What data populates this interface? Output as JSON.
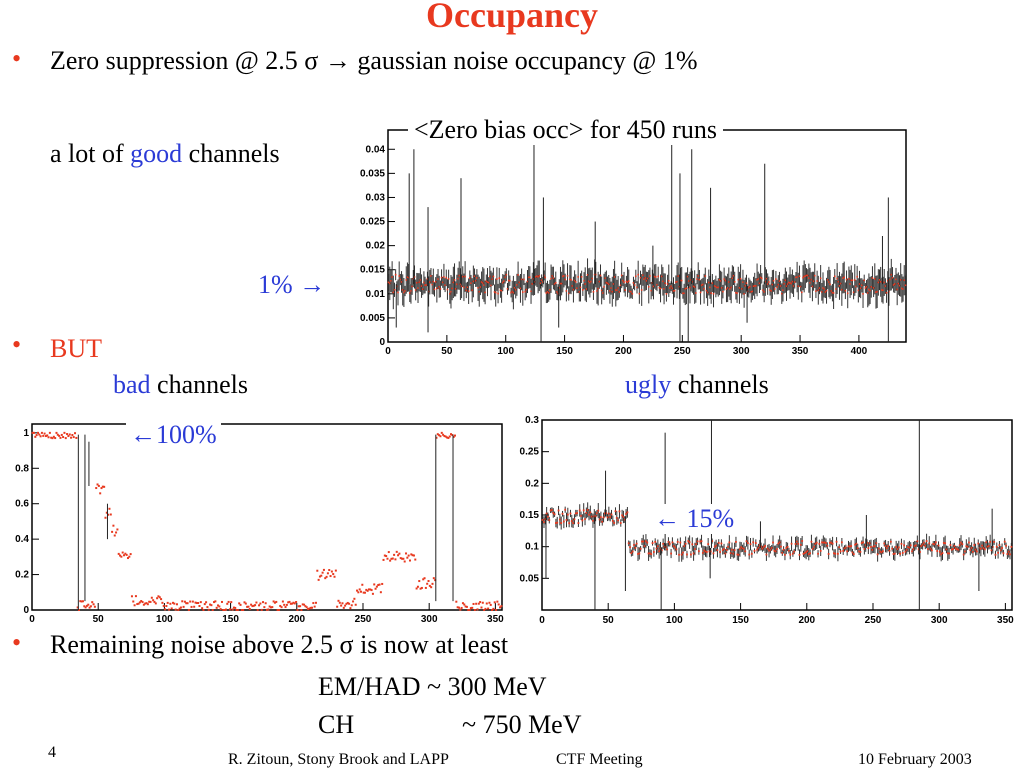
{
  "title": "Occupancy",
  "bullets": {
    "zero_suppression": "Zero suppression @ 2.5 σ → gaussian noise occupancy @ 1%",
    "good_prefix": "a lot of ",
    "good_word": "good",
    "good_suffix": " channels",
    "one_percent": "1% →",
    "but": "BUT",
    "bad_word": "bad",
    "bad_suffix": " channels",
    "ugly_word": "ugly",
    "ugly_suffix": " channels",
    "hundred": "←100%",
    "fifteen": "← 15%",
    "remaining": "Remaining noise above 2.5 σ is now at least",
    "emhad": "EM/HAD ~ 300 MeV",
    "ch_label": "CH",
    "ch_value": "~ 750 MeV"
  },
  "footer": {
    "page": "4",
    "author": "R. Zitoun, Stony Brook and LAPP",
    "meeting": "CTF  Meeting",
    "date": "10 February 2003"
  },
  "chart_data": [
    {
      "type": "line",
      "title": "<Zero bias occ> for 450 runs",
      "xlim": [
        0,
        440
      ],
      "ylim": [
        0,
        0.044
      ],
      "xticks": [
        "0",
        "50",
        "100",
        "150",
        "200",
        "250",
        "300",
        "350",
        "400"
      ],
      "yticks": [
        "0",
        "0.005",
        "0.01",
        "0.015",
        "0.02",
        "0.025",
        "0.03",
        "0.035",
        "0.04"
      ],
      "baseline": 0.012,
      "noise": 0.002,
      "spikes": [
        [
          18,
          0.035
        ],
        [
          22,
          0.04
        ],
        [
          34,
          0.028
        ],
        [
          62,
          0.034
        ],
        [
          124,
          0.043
        ],
        [
          132,
          0.03
        ],
        [
          176,
          0.025
        ],
        [
          225,
          0.02
        ],
        [
          241,
          0.043
        ],
        [
          248,
          0.035
        ],
        [
          258,
          0.04
        ],
        [
          274,
          0.032
        ],
        [
          320,
          0.037
        ],
        [
          420,
          0.022
        ],
        [
          425,
          0.03
        ]
      ],
      "dips": [
        [
          7,
          0.003
        ],
        [
          34,
          0.002
        ],
        [
          130,
          0.0
        ],
        [
          145,
          0.003
        ],
        [
          248,
          0.0
        ],
        [
          255,
          0.0
        ],
        [
          305,
          0.004
        ],
        [
          425,
          0.0
        ]
      ],
      "grid": false
    },
    {
      "type": "line",
      "title": "",
      "xlim": [
        0,
        355
      ],
      "ylim": [
        0,
        1.05
      ],
      "xticks": [
        "0",
        "50",
        "100",
        "150",
        "200",
        "250",
        "300",
        "350"
      ],
      "yticks": [
        "0",
        "0.2",
        "0.4",
        "0.6",
        "0.8",
        "1"
      ],
      "segments": [
        {
          "x0": 0,
          "x1": 34,
          "level": 0.99
        },
        {
          "x0": 34,
          "x1": 36,
          "level": 0.0
        },
        {
          "x0": 36,
          "x1": 48,
          "level": 0.04
        },
        {
          "x0": 48,
          "x1": 55,
          "level": 0.68
        },
        {
          "x0": 55,
          "x1": 60,
          "level": 0.55
        },
        {
          "x0": 60,
          "x1": 65,
          "level": 0.45
        },
        {
          "x0": 65,
          "x1": 75,
          "level": 0.3
        },
        {
          "x0": 75,
          "x1": 100,
          "level": 0.05
        },
        {
          "x0": 100,
          "x1": 215,
          "level": 0.02
        },
        {
          "x0": 215,
          "x1": 230,
          "level": 0.2
        },
        {
          "x0": 230,
          "x1": 245,
          "level": 0.04
        },
        {
          "x0": 245,
          "x1": 265,
          "level": 0.12
        },
        {
          "x0": 265,
          "x1": 290,
          "level": 0.3
        },
        {
          "x0": 290,
          "x1": 305,
          "level": 0.15
        },
        {
          "x0": 305,
          "x1": 320,
          "level": 0.99
        },
        {
          "x0": 320,
          "x1": 355,
          "level": 0.02
        }
      ],
      "grid": false
    },
    {
      "type": "line",
      "title": "",
      "xlim": [
        0,
        355
      ],
      "ylim": [
        0,
        0.3
      ],
      "xticks": [
        "0",
        "50",
        "100",
        "150",
        "200",
        "250",
        "300",
        "350"
      ],
      "yticks": [
        "0.05",
        "0.1",
        "0.15",
        "0.2",
        "0.25",
        "0.3"
      ],
      "levels": [
        {
          "x0": 0,
          "x1": 65,
          "level": 0.148
        },
        {
          "x0": 65,
          "x1": 355,
          "level": 0.098
        }
      ],
      "spikes": [
        [
          48,
          0.22
        ],
        [
          93,
          0.28
        ],
        [
          128,
          0.3
        ],
        [
          165,
          0.14
        ],
        [
          245,
          0.15
        ],
        [
          285,
          0.3
        ],
        [
          340,
          0.16
        ]
      ],
      "dips": [
        [
          3,
          0.05
        ],
        [
          40,
          0.0
        ],
        [
          63,
          0.03
        ],
        [
          90,
          0.0
        ],
        [
          127,
          0.05
        ],
        [
          285,
          0.0
        ],
        [
          330,
          0.03
        ]
      ],
      "grid": false
    }
  ]
}
